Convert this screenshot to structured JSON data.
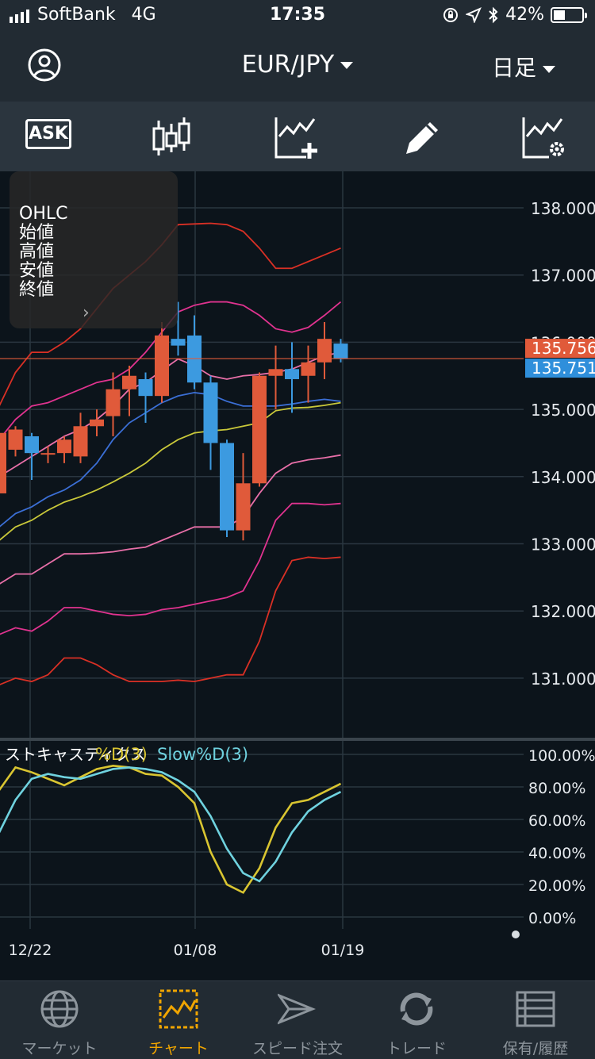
{
  "status_bar": {
    "carrier": "SoftBank",
    "network": "4G",
    "time": "17:35",
    "battery": "42%",
    "battery_level": 0.42
  },
  "nav": {
    "pair": "EUR/JPY",
    "period": "日足"
  },
  "toolbar": {
    "ask_label": "ASK"
  },
  "ohlc_panel": {
    "lines": [
      "OHLC",
      "始値",
      "高値",
      "安値",
      "終値"
    ]
  },
  "colors": {
    "up_candle": "#e05a3a",
    "down_candle": "#3c9ae0",
    "accent": "#f0a500",
    "ask_price_bg": "#e05a3a",
    "bid_price_bg": "#2f8fdb"
  },
  "chart_data": [
    {
      "type": "candlestick",
      "symbol": "EUR/JPY",
      "x_labels": [
        "12/22",
        "01/08",
        "01/19"
      ],
      "ylim": [
        130.6,
        138.2
      ],
      "y_ticks": [
        "138.000",
        "137.000",
        "136.000",
        "135.000",
        "134.000",
        "133.000",
        "132.000",
        "131.000"
      ],
      "current_prices": [
        "135.756",
        "135.751"
      ],
      "candles": [
        {
          "o": 133.75,
          "h": 134.9,
          "l": 133.6,
          "c": 134.65
        },
        {
          "o": 134.4,
          "h": 134.75,
          "l": 134.3,
          "c": 134.7
        },
        {
          "o": 134.6,
          "h": 134.65,
          "l": 133.95,
          "c": 134.35
        },
        {
          "o": 134.35,
          "h": 134.45,
          "l": 134.2,
          "c": 134.35
        },
        {
          "o": 134.35,
          "h": 134.6,
          "l": 134.2,
          "c": 134.55
        },
        {
          "o": 134.3,
          "h": 134.95,
          "l": 134.2,
          "c": 134.75
        },
        {
          "o": 134.75,
          "h": 135.0,
          "l": 134.6,
          "c": 134.85
        },
        {
          "o": 134.9,
          "h": 135.55,
          "l": 134.6,
          "c": 135.3
        },
        {
          "o": 135.3,
          "h": 135.65,
          "l": 134.9,
          "c": 135.5
        },
        {
          "o": 135.45,
          "h": 135.55,
          "l": 134.8,
          "c": 135.2
        },
        {
          "o": 135.2,
          "h": 136.3,
          "l": 135.1,
          "c": 136.1
        },
        {
          "o": 136.05,
          "h": 136.6,
          "l": 135.8,
          "c": 135.95
        },
        {
          "o": 136.1,
          "h": 136.4,
          "l": 135.3,
          "c": 135.4
        },
        {
          "o": 135.4,
          "h": 135.5,
          "l": 134.1,
          "c": 134.5
        },
        {
          "o": 134.5,
          "h": 134.55,
          "l": 133.1,
          "c": 133.2
        },
        {
          "o": 133.2,
          "h": 134.35,
          "l": 133.05,
          "c": 133.9
        },
        {
          "o": 133.9,
          "h": 135.55,
          "l": 133.85,
          "c": 135.5
        },
        {
          "o": 135.5,
          "h": 135.95,
          "l": 135.0,
          "c": 135.6
        },
        {
          "o": 135.6,
          "h": 136.0,
          "l": 134.95,
          "c": 135.45
        },
        {
          "o": 135.5,
          "h": 135.95,
          "l": 135.1,
          "c": 135.7
        },
        {
          "o": 135.7,
          "h": 136.3,
          "l": 135.45,
          "c": 136.05
        },
        {
          "o": 135.98,
          "h": 136.05,
          "l": 135.7,
          "c": 135.75
        }
      ],
      "overlays": [
        {
          "color": "#d93025",
          "values": [
            130.9,
            131.0,
            130.95,
            131.05,
            131.3,
            131.3,
            131.2,
            131.05,
            130.95,
            130.95,
            130.95,
            130.97,
            130.95,
            131.0,
            131.05,
            131.05,
            131.55,
            132.3,
            132.75,
            132.8,
            132.78,
            132.8
          ]
        },
        {
          "color": "#e0338f",
          "values": [
            131.65,
            131.75,
            131.7,
            131.85,
            132.05,
            132.05,
            132.0,
            131.95,
            131.93,
            131.95,
            132.02,
            132.05,
            132.1,
            132.15,
            132.2,
            132.3,
            132.75,
            133.35,
            133.6,
            133.6,
            133.58,
            133.6
          ]
        },
        {
          "color": "#e86fa8",
          "values": [
            132.4,
            132.55,
            132.55,
            132.7,
            132.85,
            132.85,
            132.86,
            132.88,
            132.92,
            132.95,
            133.05,
            133.15,
            133.25,
            133.25,
            133.25,
            133.4,
            133.75,
            134.05,
            134.2,
            134.25,
            134.28,
            134.32
          ]
        },
        {
          "color": "#c9c83a",
          "values": [
            133.05,
            133.25,
            133.35,
            133.5,
            133.62,
            133.7,
            133.8,
            133.92,
            134.05,
            134.2,
            134.4,
            134.55,
            134.65,
            134.68,
            134.7,
            134.75,
            134.8,
            134.98,
            135.02,
            135.03,
            135.06,
            135.1
          ]
        },
        {
          "color": "#3b6fd6",
          "values": [
            133.25,
            133.45,
            133.55,
            133.7,
            133.8,
            133.95,
            134.2,
            134.55,
            134.8,
            134.95,
            135.1,
            135.2,
            135.25,
            135.22,
            135.12,
            135.05,
            135.05,
            135.05,
            135.08,
            135.12,
            135.15,
            135.12
          ]
        },
        {
          "color": "#e86fa8",
          "values": [
            134.0,
            134.15,
            134.3,
            134.45,
            134.6,
            134.7,
            134.85,
            135.05,
            135.3,
            135.4,
            135.58,
            135.75,
            135.65,
            135.5,
            135.45,
            135.5,
            135.52,
            135.55,
            135.6,
            135.7,
            135.8,
            135.85
          ]
        },
        {
          "color": "#e0338f",
          "values": [
            134.55,
            134.85,
            135.05,
            135.1,
            135.2,
            135.3,
            135.4,
            135.45,
            135.6,
            135.85,
            136.15,
            136.45,
            136.55,
            136.6,
            136.6,
            136.55,
            136.4,
            136.2,
            136.15,
            136.22,
            136.4,
            136.6
          ]
        },
        {
          "color": "#d93025",
          "values": [
            135.05,
            135.55,
            135.85,
            135.85,
            136.0,
            136.2,
            136.5,
            136.8,
            137.0,
            137.2,
            137.45,
            137.75,
            137.76,
            137.77,
            137.75,
            137.65,
            137.4,
            137.1,
            137.1,
            137.2,
            137.3,
            137.4
          ]
        }
      ]
    },
    {
      "type": "line",
      "title": "ストキャスティクス",
      "series": [
        {
          "name": "%D(3)",
          "color": "#d9c531",
          "values": [
            78,
            92,
            89,
            85,
            81,
            86,
            91,
            93,
            92,
            88,
            87,
            80,
            70,
            40,
            20,
            15,
            30,
            55,
            70,
            72,
            77,
            82
          ]
        },
        {
          "name": "Slow%D(3)",
          "color": "#6fd2df",
          "values": [
            52,
            72,
            85,
            88,
            86,
            85,
            88,
            91,
            92,
            91,
            89,
            84,
            77,
            62,
            42,
            27,
            22,
            34,
            52,
            65,
            72,
            77
          ]
        }
      ],
      "ylim": [
        0,
        100
      ],
      "y_ticks": [
        "100.00%",
        "80.00%",
        "60.00%",
        "40.00%",
        "20.00%",
        "0.00%"
      ]
    }
  ],
  "tabs": [
    {
      "label": "マーケット",
      "icon": "globe-icon",
      "active": false
    },
    {
      "label": "チャート",
      "icon": "chart-icon",
      "active": true
    },
    {
      "label": "スピード注文",
      "icon": "speed-order-icon",
      "active": false
    },
    {
      "label": "トレード",
      "icon": "trade-refresh-icon",
      "active": false
    },
    {
      "label": "保有/履歴",
      "icon": "history-list-icon",
      "active": false
    }
  ]
}
